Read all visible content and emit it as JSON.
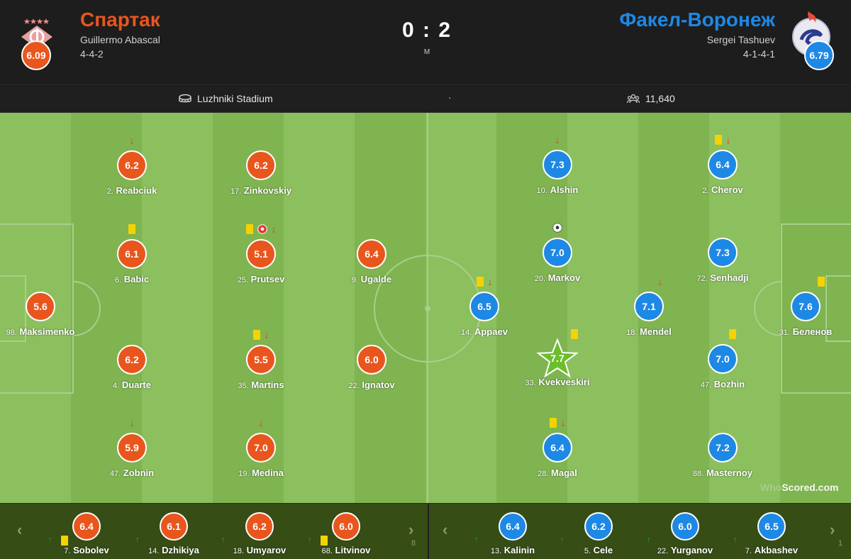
{
  "match": {
    "home": {
      "name": "Спартак",
      "coach": "Guillermo Abascal",
      "formation": "4-4-2",
      "rating": "6.09",
      "color": "#e8561e"
    },
    "away": {
      "name": "Факел-Воронеж",
      "coach": "Sergei Tashuev",
      "formation": "4-1-4-1",
      "rating": "6.79",
      "color": "#1e88e5"
    },
    "score": "0 : 2",
    "status": "M"
  },
  "info": {
    "stadium": "Luzhniki Stadium",
    "separator": "·",
    "attendance": "11,640"
  },
  "pitch": {
    "home_players": [
      {
        "num": "98.",
        "name": "Maksimenko",
        "rating": "5.6",
        "events": []
      },
      {
        "num": "2.",
        "name": "Reabciuk",
        "rating": "6.2",
        "events": [
          "sub-off"
        ]
      },
      {
        "num": "6.",
        "name": "Babic",
        "rating": "6.1",
        "events": [
          "yellow"
        ]
      },
      {
        "num": "4.",
        "name": "Duarte",
        "rating": "6.2",
        "events": []
      },
      {
        "num": "47.",
        "name": "Zobnin",
        "rating": "5.9",
        "events": [
          "sub-off"
        ]
      },
      {
        "num": "17.",
        "name": "Zinkovskiy",
        "rating": "6.2",
        "events": []
      },
      {
        "num": "25.",
        "name": "Prutsev",
        "rating": "5.1",
        "events": [
          "yellow",
          "own-goal",
          "sub-off"
        ]
      },
      {
        "num": "35.",
        "name": "Martins",
        "rating": "5.5",
        "events": [
          "yellow",
          "sub-off"
        ]
      },
      {
        "num": "19.",
        "name": "Medina",
        "rating": "7.0",
        "events": [
          "sub-off"
        ]
      },
      {
        "num": "9.",
        "name": "Ugalde",
        "rating": "6.4",
        "events": []
      },
      {
        "num": "22.",
        "name": "Ignatov",
        "rating": "6.0",
        "events": []
      }
    ],
    "away_players": [
      {
        "num": "14.",
        "name": "Appaev",
        "rating": "6.5",
        "events": [
          "yellow",
          "sub-off"
        ]
      },
      {
        "num": "10.",
        "name": "Alshin",
        "rating": "7.3",
        "events": [
          "sub-off"
        ]
      },
      {
        "num": "20.",
        "name": "Markov",
        "rating": "7.0",
        "events": [
          "goal"
        ]
      },
      {
        "num": "33.",
        "name": "Kvekveskiri",
        "rating": "7.7",
        "events": [
          "yellow"
        ],
        "star": true
      },
      {
        "num": "28.",
        "name": "Magal",
        "rating": "6.4",
        "events": [
          "yellow",
          "sub-off"
        ]
      },
      {
        "num": "18.",
        "name": "Mendel",
        "rating": "7.1",
        "events": [
          "sub-off"
        ]
      },
      {
        "num": "2.",
        "name": "Cherov",
        "rating": "6.4",
        "events": [
          "yellow",
          "sub-off"
        ]
      },
      {
        "num": "72.",
        "name": "Senhadji",
        "rating": "7.3",
        "events": []
      },
      {
        "num": "47.",
        "name": "Bozhin",
        "rating": "7.0",
        "events": [
          "yellow"
        ]
      },
      {
        "num": "88.",
        "name": "Masternoy",
        "rating": "7.2",
        "events": []
      },
      {
        "num": "31.",
        "name": "Беленов",
        "rating": "7.6",
        "events": [
          "yellow"
        ]
      }
    ],
    "watermark": {
      "part1": "Who",
      "part2": "Scored",
      "part3": ".com"
    }
  },
  "bench": {
    "prev_label": "‹",
    "next_label": "›",
    "home_subs": [
      {
        "num": "7.",
        "name": "Sobolev",
        "rating": "6.4",
        "yellow": true
      },
      {
        "num": "14.",
        "name": "Dzhikiya",
        "rating": "6.1",
        "yellow": false
      },
      {
        "num": "18.",
        "name": "Umyarov",
        "rating": "6.2",
        "yellow": false
      },
      {
        "num": "68.",
        "name": "Litvinov",
        "rating": "6.0",
        "yellow": true
      }
    ],
    "away_subs": [
      {
        "num": "13.",
        "name": "Kalinin",
        "rating": "6.4",
        "yellow": false
      },
      {
        "num": "5.",
        "name": "Cele",
        "rating": "6.2",
        "yellow": false
      },
      {
        "num": "22.",
        "name": "Yurganov",
        "rating": "6.0",
        "yellow": false
      },
      {
        "num": "7.",
        "name": "Akbashev",
        "rating": "6.5",
        "yellow": false
      }
    ],
    "home_edge": "8",
    "away_edge": "1"
  }
}
